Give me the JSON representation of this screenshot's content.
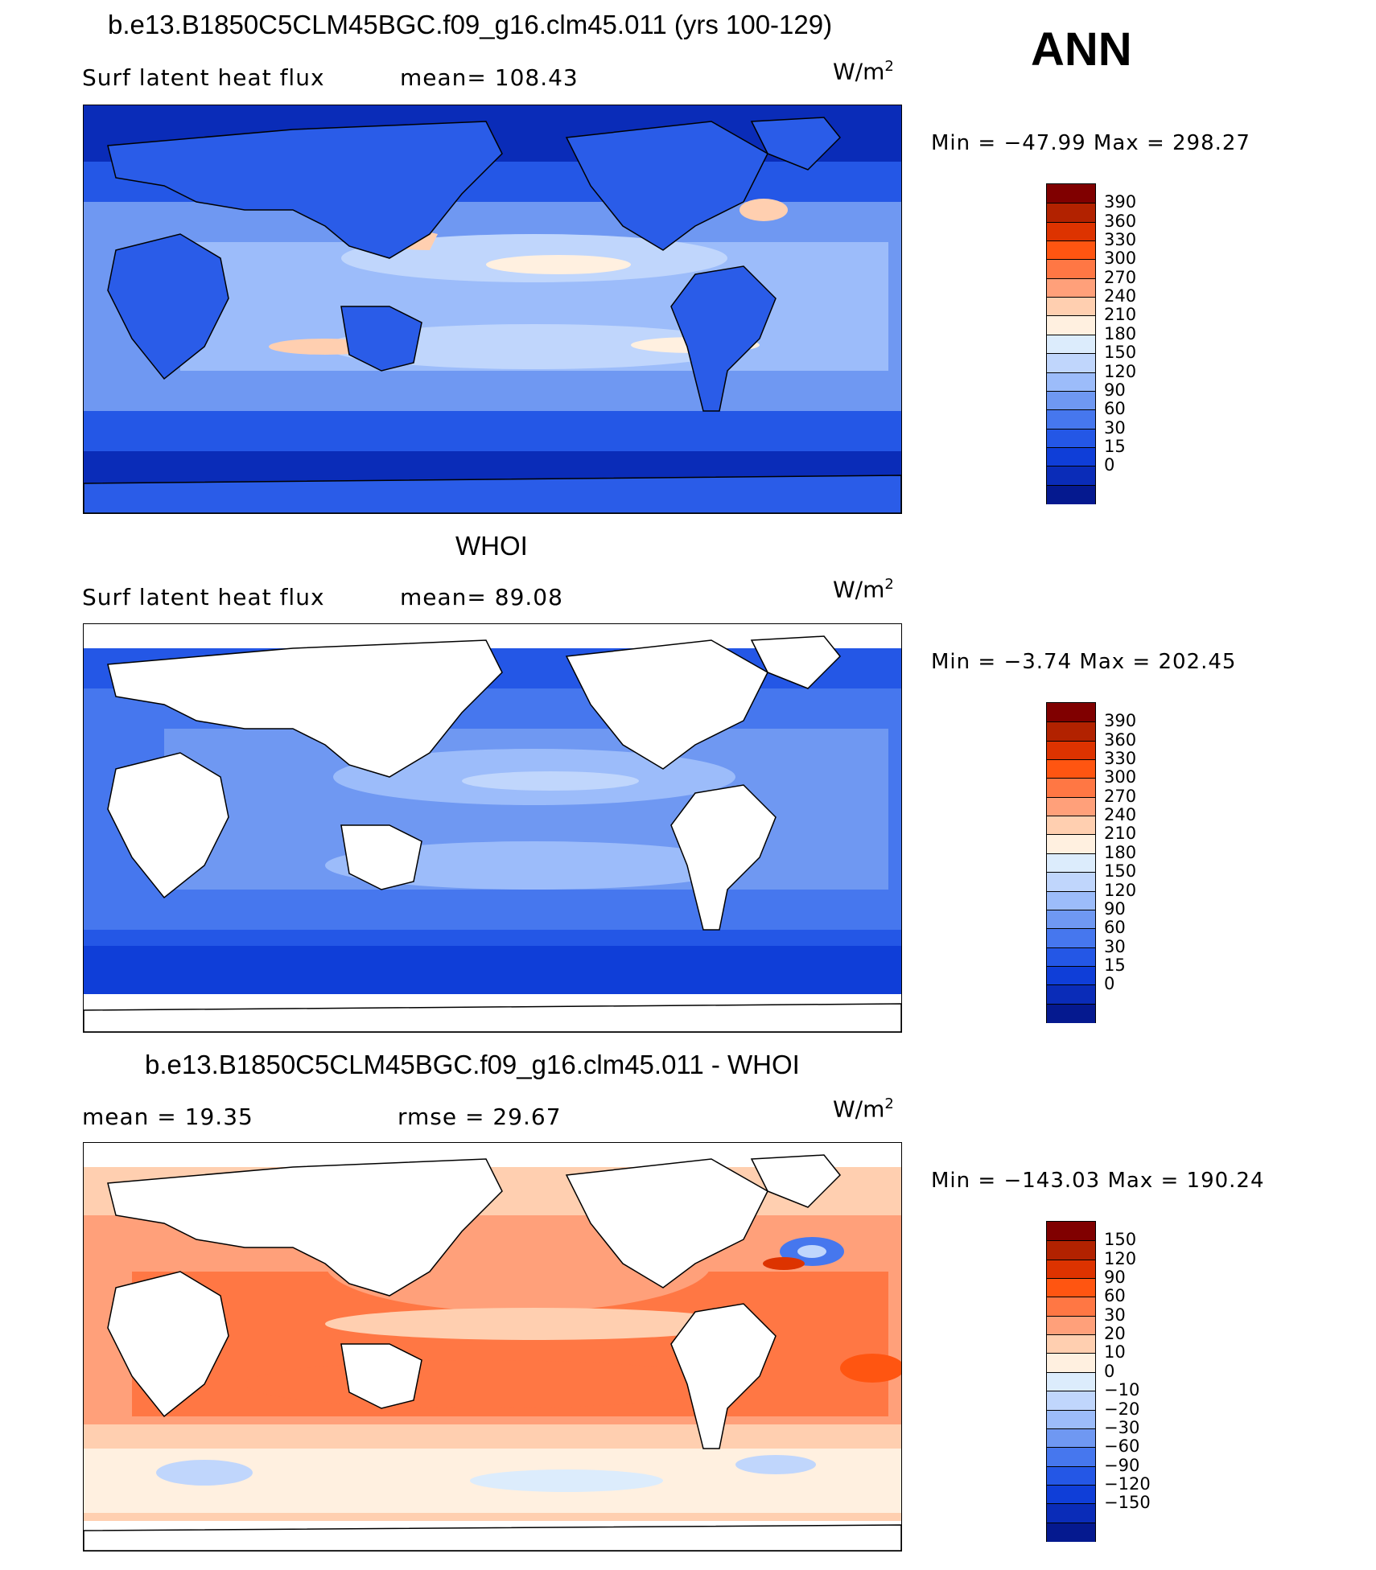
{
  "season": "ANN",
  "panels": [
    {
      "id": "model",
      "title": "b.e13.B1850C5CLM45BGC.f09_g16.clm45.011 (yrs 100-129)",
      "left_label": "Surf  latent  heat  flux",
      "center_label": "mean=  108.43",
      "units": "W/m",
      "units_sup": "2",
      "minmax": "Min  =  −47.99  Max  =  298.27",
      "colorbar": {
        "colors": [
          "#800000",
          "#b22200",
          "#dd3300",
          "#ff5511",
          "#ff7744",
          "#ffa07a",
          "#ffcfb0",
          "#fff0e0",
          "#dcecfc",
          "#c0d6fc",
          "#9cbcfa",
          "#6f98f2",
          "#4677ee",
          "#2457e6",
          "#0f3ed8",
          "#0a2cb8",
          "#05198f"
        ],
        "labels": [
          "390",
          "360",
          "330",
          "300",
          "270",
          "240",
          "210",
          "180",
          "150",
          "120",
          "90",
          "60",
          "30",
          "15",
          "0"
        ]
      }
    },
    {
      "id": "obs",
      "title": "WHOI",
      "left_label": "Surf  latent  heat  flux",
      "center_label": "mean=   89.08",
      "units": "W/m",
      "units_sup": "2",
      "minmax": "Min  =    −3.74  Max  =  202.45",
      "colorbar": {
        "colors": [
          "#800000",
          "#b22200",
          "#dd3300",
          "#ff5511",
          "#ff7744",
          "#ffa07a",
          "#ffcfb0",
          "#fff0e0",
          "#dcecfc",
          "#c0d6fc",
          "#9cbcfa",
          "#6f98f2",
          "#4677ee",
          "#2457e6",
          "#0f3ed8",
          "#0a2cb8",
          "#05198f"
        ],
        "labels": [
          "390",
          "360",
          "330",
          "300",
          "270",
          "240",
          "210",
          "180",
          "150",
          "120",
          "90",
          "60",
          "30",
          "15",
          "0"
        ]
      }
    },
    {
      "id": "diff",
      "title": "b.e13.B1850C5CLM45BGC.f09_g16.clm45.011 - WHOI",
      "left_label": "mean  =    19.35",
      "center_label": "rmse  =    29.67",
      "units": "W/m",
      "units_sup": "2",
      "minmax": "Min  =  −143.03  Max  =  190.24",
      "colorbar": {
        "colors": [
          "#800000",
          "#b22200",
          "#dd3300",
          "#ff5511",
          "#ff7744",
          "#ffa07a",
          "#ffcfb0",
          "#fff0e0",
          "#dcecfc",
          "#c0d6fc",
          "#9cbcfa",
          "#6f98f2",
          "#4677ee",
          "#2457e6",
          "#0f3ed8",
          "#0a2cb8",
          "#05198f"
        ],
        "labels": [
          "150",
          "120",
          "90",
          "60",
          "30",
          "20",
          "10",
          "0",
          "−10",
          "−20",
          "−30",
          "−60",
          "−90",
          "−120",
          "−150"
        ]
      }
    }
  ],
  "colors": {
    "land_model": "#2a5ce8",
    "ocean_model": "#86a8f6",
    "land_obs": "#ffffff",
    "ocean_obs": "#6f98f2",
    "land_diff": "#ffffff",
    "ocean_diff": "#ff9c72"
  }
}
